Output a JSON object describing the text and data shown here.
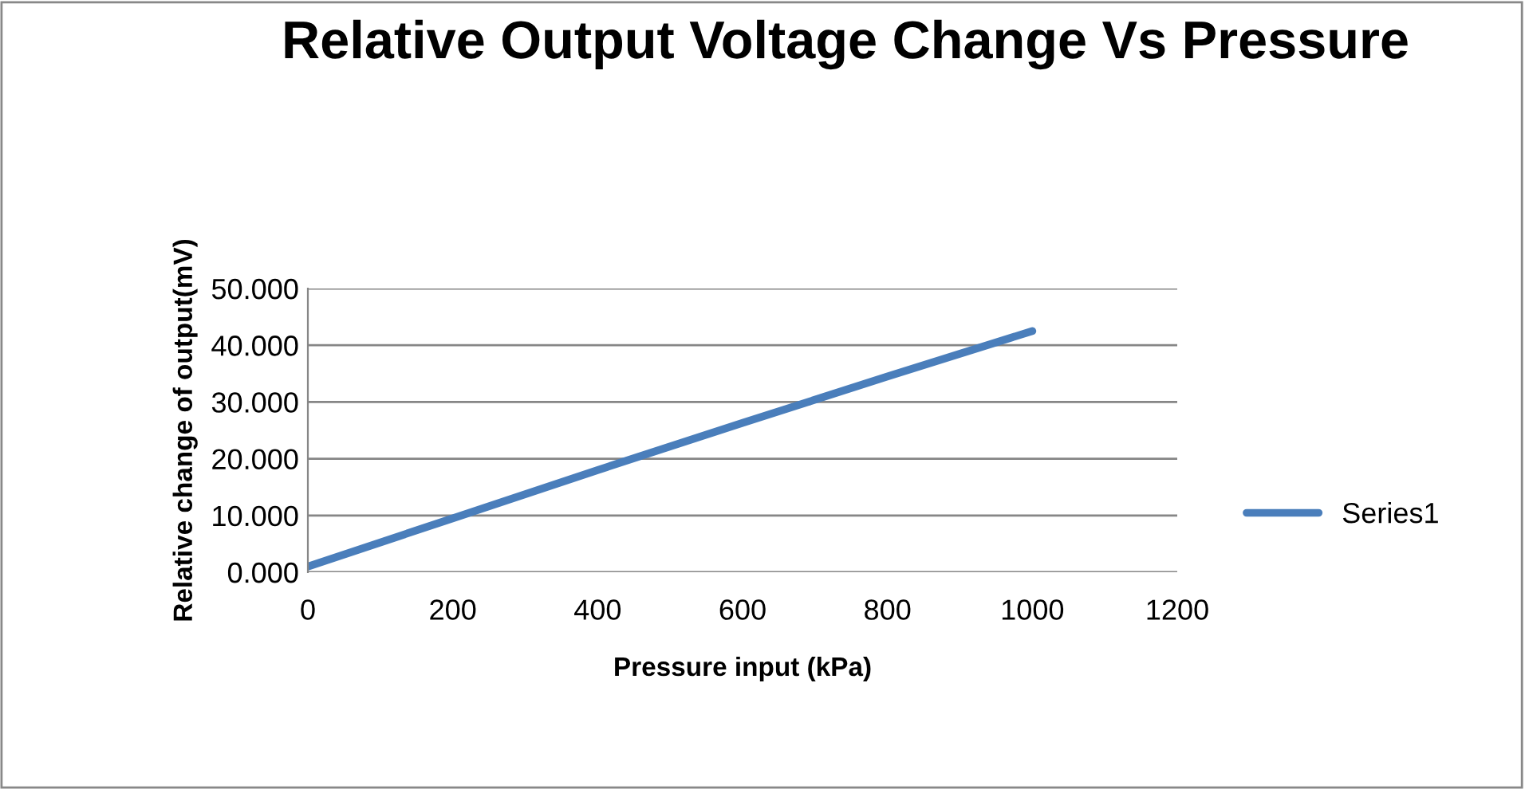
{
  "chart_data": {
    "type": "line",
    "title": "Relative Output Voltage Change Vs Pressure",
    "xlabel": "Pressure input (kPa)",
    "ylabel": "Relative change of output(mV)",
    "x": [
      0,
      200,
      400,
      600,
      800,
      1000
    ],
    "series": [
      {
        "name": "Series1",
        "color": "#4a7ebb",
        "values": [
          1.0,
          9.5,
          18.0,
          26.3,
          34.5,
          42.5
        ]
      }
    ],
    "xlim": [
      0,
      1200
    ],
    "xticks": [
      0,
      200,
      400,
      600,
      800,
      1000,
      1200
    ],
    "ylim": [
      0,
      50
    ],
    "yticks": [
      {
        "value": 0,
        "label": "0.000"
      },
      {
        "value": 10,
        "label": "10.000"
      },
      {
        "value": 20,
        "label": "20.000"
      },
      {
        "value": 30,
        "label": "30.000"
      },
      {
        "value": 40,
        "label": "40.000"
      },
      {
        "value": 50,
        "label": "50.000"
      }
    ],
    "grid": "y",
    "legend": "right",
    "marker": "none",
    "line_style": "solid"
  }
}
